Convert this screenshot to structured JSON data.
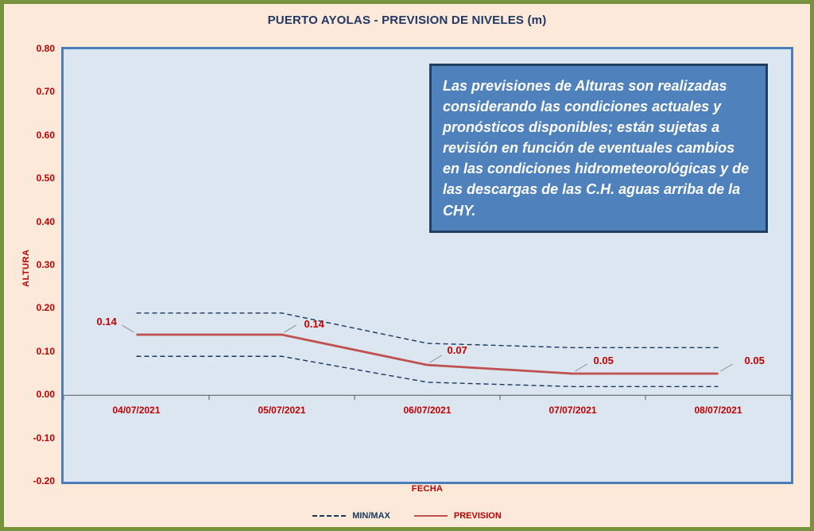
{
  "title": "PUERTO AYOLAS - PREVISION DE NIVELES (m)",
  "note_box": {
    "text": "Las previsiones de Alturas son realizadas considerando las condiciones actuales y pronósticos disponibles;  están sujetas a revisión en función de eventuales cambios en las condiciones hidrometeorológicas y de las descargas de las C.H. aguas arriba de la CHY."
  },
  "chart_data": {
    "type": "line",
    "title": "PUERTO AYOLAS - PREVISION DE NIVELES (m)",
    "xlabel": "FECHA",
    "ylabel": "ALTURA",
    "categories": [
      "04/07/2021",
      "05/07/2021",
      "06/07/2021",
      "07/07/2021",
      "08/07/2021"
    ],
    "series": [
      {
        "name": "MIN/MAX upper",
        "values": [
          0.19,
          0.19,
          0.12,
          0.11,
          0.11
        ],
        "style": "dashed",
        "color_key": "minmax_line",
        "width": 1.4
      },
      {
        "name": "MIN/MAX lower",
        "values": [
          0.09,
          0.09,
          0.03,
          0.02,
          0.02
        ],
        "style": "dashed",
        "color_key": "minmax_line",
        "width": 1.4
      },
      {
        "name": "PREVISION",
        "values": [
          0.14,
          0.14,
          0.07,
          0.05,
          0.05
        ],
        "style": "solid",
        "color_key": "prevision_line",
        "width": 2.75,
        "labels": true
      }
    ],
    "data_labels": [
      "0.14",
      "0.14",
      "0.07",
      "0.05",
      "0.05"
    ],
    "ylim": [
      -0.2,
      0.8
    ],
    "ytick_step": 0.1,
    "yticks": [
      "0.80",
      "0.70",
      "0.60",
      "0.50",
      "0.40",
      "0.30",
      "0.20",
      "0.10",
      "0.00",
      "-0.10",
      "-0.20"
    ],
    "grid": false,
    "legend_position": "bottom",
    "legend": [
      {
        "label": "MIN/MAX",
        "style": "dashed",
        "color_key": "minmax_line",
        "label_color_key": "minmax_line"
      },
      {
        "label": "PREVISION",
        "style": "solid",
        "color_key": "prevision_line",
        "label_color_key": "red_text"
      }
    ]
  },
  "colors": {
    "background": "#fde9d9",
    "frame": "#76923c",
    "plot_fill": "#dce6f1",
    "plot_border": "#4a7ebb",
    "title_color": "#1f3864",
    "red_text": "#c00000",
    "prevision_line": "#c0504d",
    "minmax_line": "#17375e",
    "note_fill": "#4f81bd",
    "note_border": "#244061",
    "axis": "#595959",
    "note_text": "#ffffff",
    "leader_line": "#8c8c8c"
  }
}
